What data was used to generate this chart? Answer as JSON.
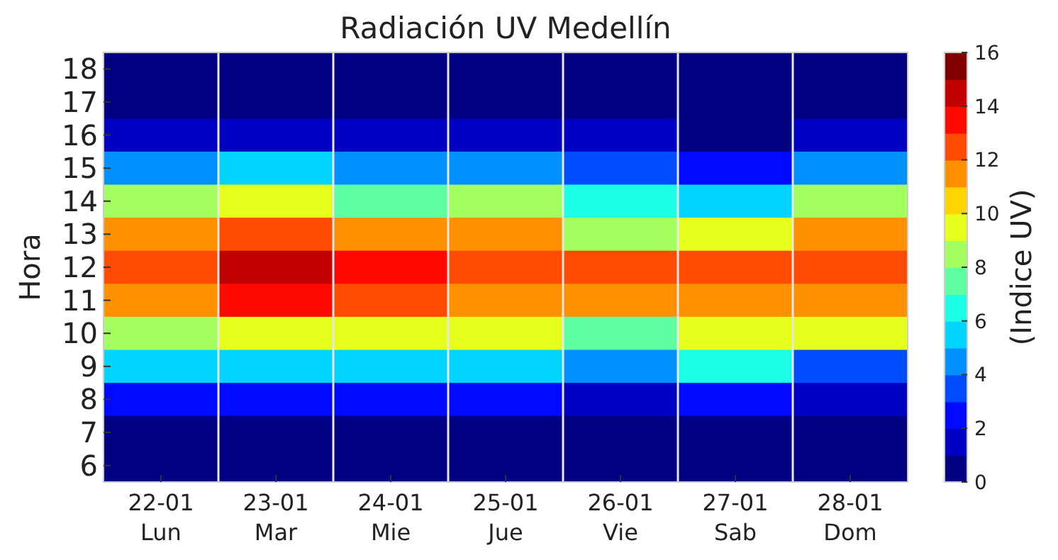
{
  "chart_data": {
    "type": "heatmap",
    "title": "Radiación UV Medellín",
    "ylabel": "Hora",
    "clabel": "(Indice UV)",
    "categories": [
      "22-01\nLun",
      "23-01\nMar",
      "24-01\nMie",
      "25-01\nJue",
      "26-01\nVie",
      "27-01\nSab",
      "28-01\nDom"
    ],
    "y_categories": [
      "18",
      "17",
      "16",
      "15",
      "14",
      "13",
      "12",
      "11",
      "10",
      "9",
      "8",
      "7",
      "6"
    ],
    "cells": [
      [
        0.5,
        0.5,
        0.5,
        0.5,
        0.5,
        0.5,
        0.5
      ],
      [
        0.5,
        0.5,
        0.5,
        0.5,
        0.5,
        0.5,
        0.5
      ],
      [
        1.5,
        1.5,
        1.5,
        1.5,
        1.5,
        0.5,
        1.5
      ],
      [
        4.5,
        5.5,
        4.5,
        4.5,
        3.5,
        2.5,
        4.5
      ],
      [
        8.5,
        9.5,
        7.5,
        8.5,
        6.5,
        5.5,
        8.5
      ],
      [
        11.5,
        12.5,
        11.5,
        11.5,
        8.5,
        9.5,
        11.5
      ],
      [
        12.5,
        14.5,
        13.5,
        12.5,
        12.5,
        12.5,
        12.5
      ],
      [
        11.5,
        13.5,
        12.5,
        11.5,
        11.5,
        11.5,
        11.5
      ],
      [
        8.5,
        9.5,
        9.5,
        9.5,
        7.5,
        9.5,
        9.5
      ],
      [
        5.5,
        5.5,
        5.5,
        5.5,
        4.5,
        6.5,
        3.5
      ],
      [
        2.5,
        2.5,
        2.5,
        2.5,
        1.5,
        2.5,
        1.5
      ],
      [
        0.5,
        0.5,
        0.5,
        0.5,
        0.5,
        0.5,
        0.5
      ],
      [
        0.5,
        0.5,
        0.5,
        0.5,
        0.5,
        0.5,
        0.5
      ]
    ],
    "clim": [
      0,
      16
    ],
    "cticks": [
      0,
      2,
      4,
      6,
      8,
      10,
      12,
      14,
      16
    ],
    "grid": "x"
  }
}
